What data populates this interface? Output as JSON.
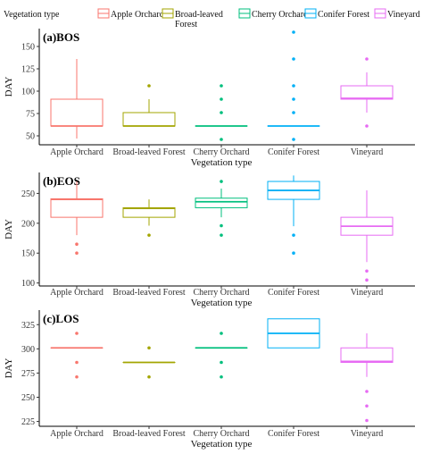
{
  "legend": {
    "title": "Vegetation type",
    "entries": [
      "Apple Orchard",
      "Broad-leaved Forest",
      "Cherry Orchard",
      "Conifer Forest",
      "Vineyard"
    ]
  },
  "colors": {
    "Apple Orchard": "#F8766D",
    "Broad-leaved Forest": "#A3A500",
    "Cherry Orchard": "#00BF7D",
    "Conifer Forest": "#00B0F6",
    "Vineyard": "#E76BF3"
  },
  "chart_data": [
    {
      "type": "box",
      "title": "(a)BOS",
      "xlabel": "Vegetation type",
      "ylabel": "DAY",
      "ylim": [
        40,
        170
      ],
      "yticks": [
        50,
        75,
        100,
        125,
        150
      ],
      "categories": [
        "Apple Orchard",
        "Broad-leaved Forest",
        "Cherry Orchard",
        "Conifer Forest",
        "Vineyard"
      ],
      "boxes": [
        {
          "min": 47,
          "q1": 61,
          "median": 61,
          "q3": 91,
          "max": 136,
          "outliers": []
        },
        {
          "min": 61,
          "q1": 61,
          "median": 61,
          "q3": 76,
          "max": 91,
          "outliers": [
            106
          ]
        },
        {
          "min": 61,
          "q1": 61,
          "median": 61,
          "q3": 61,
          "max": 61,
          "outliers": [
            46,
            76,
            91,
            106
          ]
        },
        {
          "min": 61,
          "q1": 61,
          "median": 61,
          "q3": 61,
          "max": 61,
          "outliers": [
            46,
            76,
            91,
            106,
            136,
            166
          ]
        },
        {
          "min": 76,
          "q1": 91,
          "median": 92,
          "q3": 106,
          "max": 121,
          "outliers": [
            61,
            136
          ]
        }
      ]
    },
    {
      "type": "box",
      "title": "(b)EOS",
      "xlabel": "Vegetation type",
      "ylabel": "DAY",
      "ylim": [
        95,
        285
      ],
      "yticks": [
        100,
        150,
        200,
        250
      ],
      "categories": [
        "Apple Orchard",
        "Broad-leaved Forest",
        "Cherry Orchard",
        "Conifer Forest",
        "Vineyard"
      ],
      "boxes": [
        {
          "min": 180,
          "q1": 210,
          "median": 240,
          "q3": 241,
          "max": 270,
          "outliers": [
            150,
            165
          ]
        },
        {
          "min": 196,
          "q1": 210,
          "median": 225,
          "q3": 226,
          "max": 240,
          "outliers": [
            180
          ]
        },
        {
          "min": 210,
          "q1": 226,
          "median": 236,
          "q3": 242,
          "max": 258,
          "outliers": [
            180,
            196,
            270
          ]
        },
        {
          "min": 195,
          "q1": 240,
          "median": 255,
          "q3": 270,
          "max": 280,
          "outliers": [
            150,
            180
          ]
        },
        {
          "min": 135,
          "q1": 180,
          "median": 195,
          "q3": 210,
          "max": 255,
          "outliers": [
            105,
            120
          ]
        }
      ]
    },
    {
      "type": "box",
      "title": "(c)LOS",
      "xlabel": "Vegetation type",
      "ylabel": "DAY",
      "ylim": [
        220,
        340
      ],
      "yticks": [
        225,
        250,
        275,
        300,
        325
      ],
      "categories": [
        "Apple Orchard",
        "Broad-leaved Forest",
        "Cherry Orchard",
        "Conifer Forest",
        "Vineyard"
      ],
      "boxes": [
        {
          "min": 301,
          "q1": 301,
          "median": 301,
          "q3": 301,
          "max": 301,
          "outliers": [
            271,
            286,
            316
          ]
        },
        {
          "min": 286,
          "q1": 286,
          "median": 286,
          "q3": 286,
          "max": 286,
          "outliers": [
            271,
            301
          ]
        },
        {
          "min": 301,
          "q1": 301,
          "median": 301,
          "q3": 301,
          "max": 301,
          "outliers": [
            271,
            286,
            316
          ]
        },
        {
          "min": 301,
          "q1": 301,
          "median": 316,
          "q3": 331,
          "max": 331,
          "outliers": []
        },
        {
          "min": 271,
          "q1": 286,
          "median": 287,
          "q3": 301,
          "max": 316,
          "outliers": [
            226,
            241,
            256
          ]
        }
      ]
    }
  ]
}
